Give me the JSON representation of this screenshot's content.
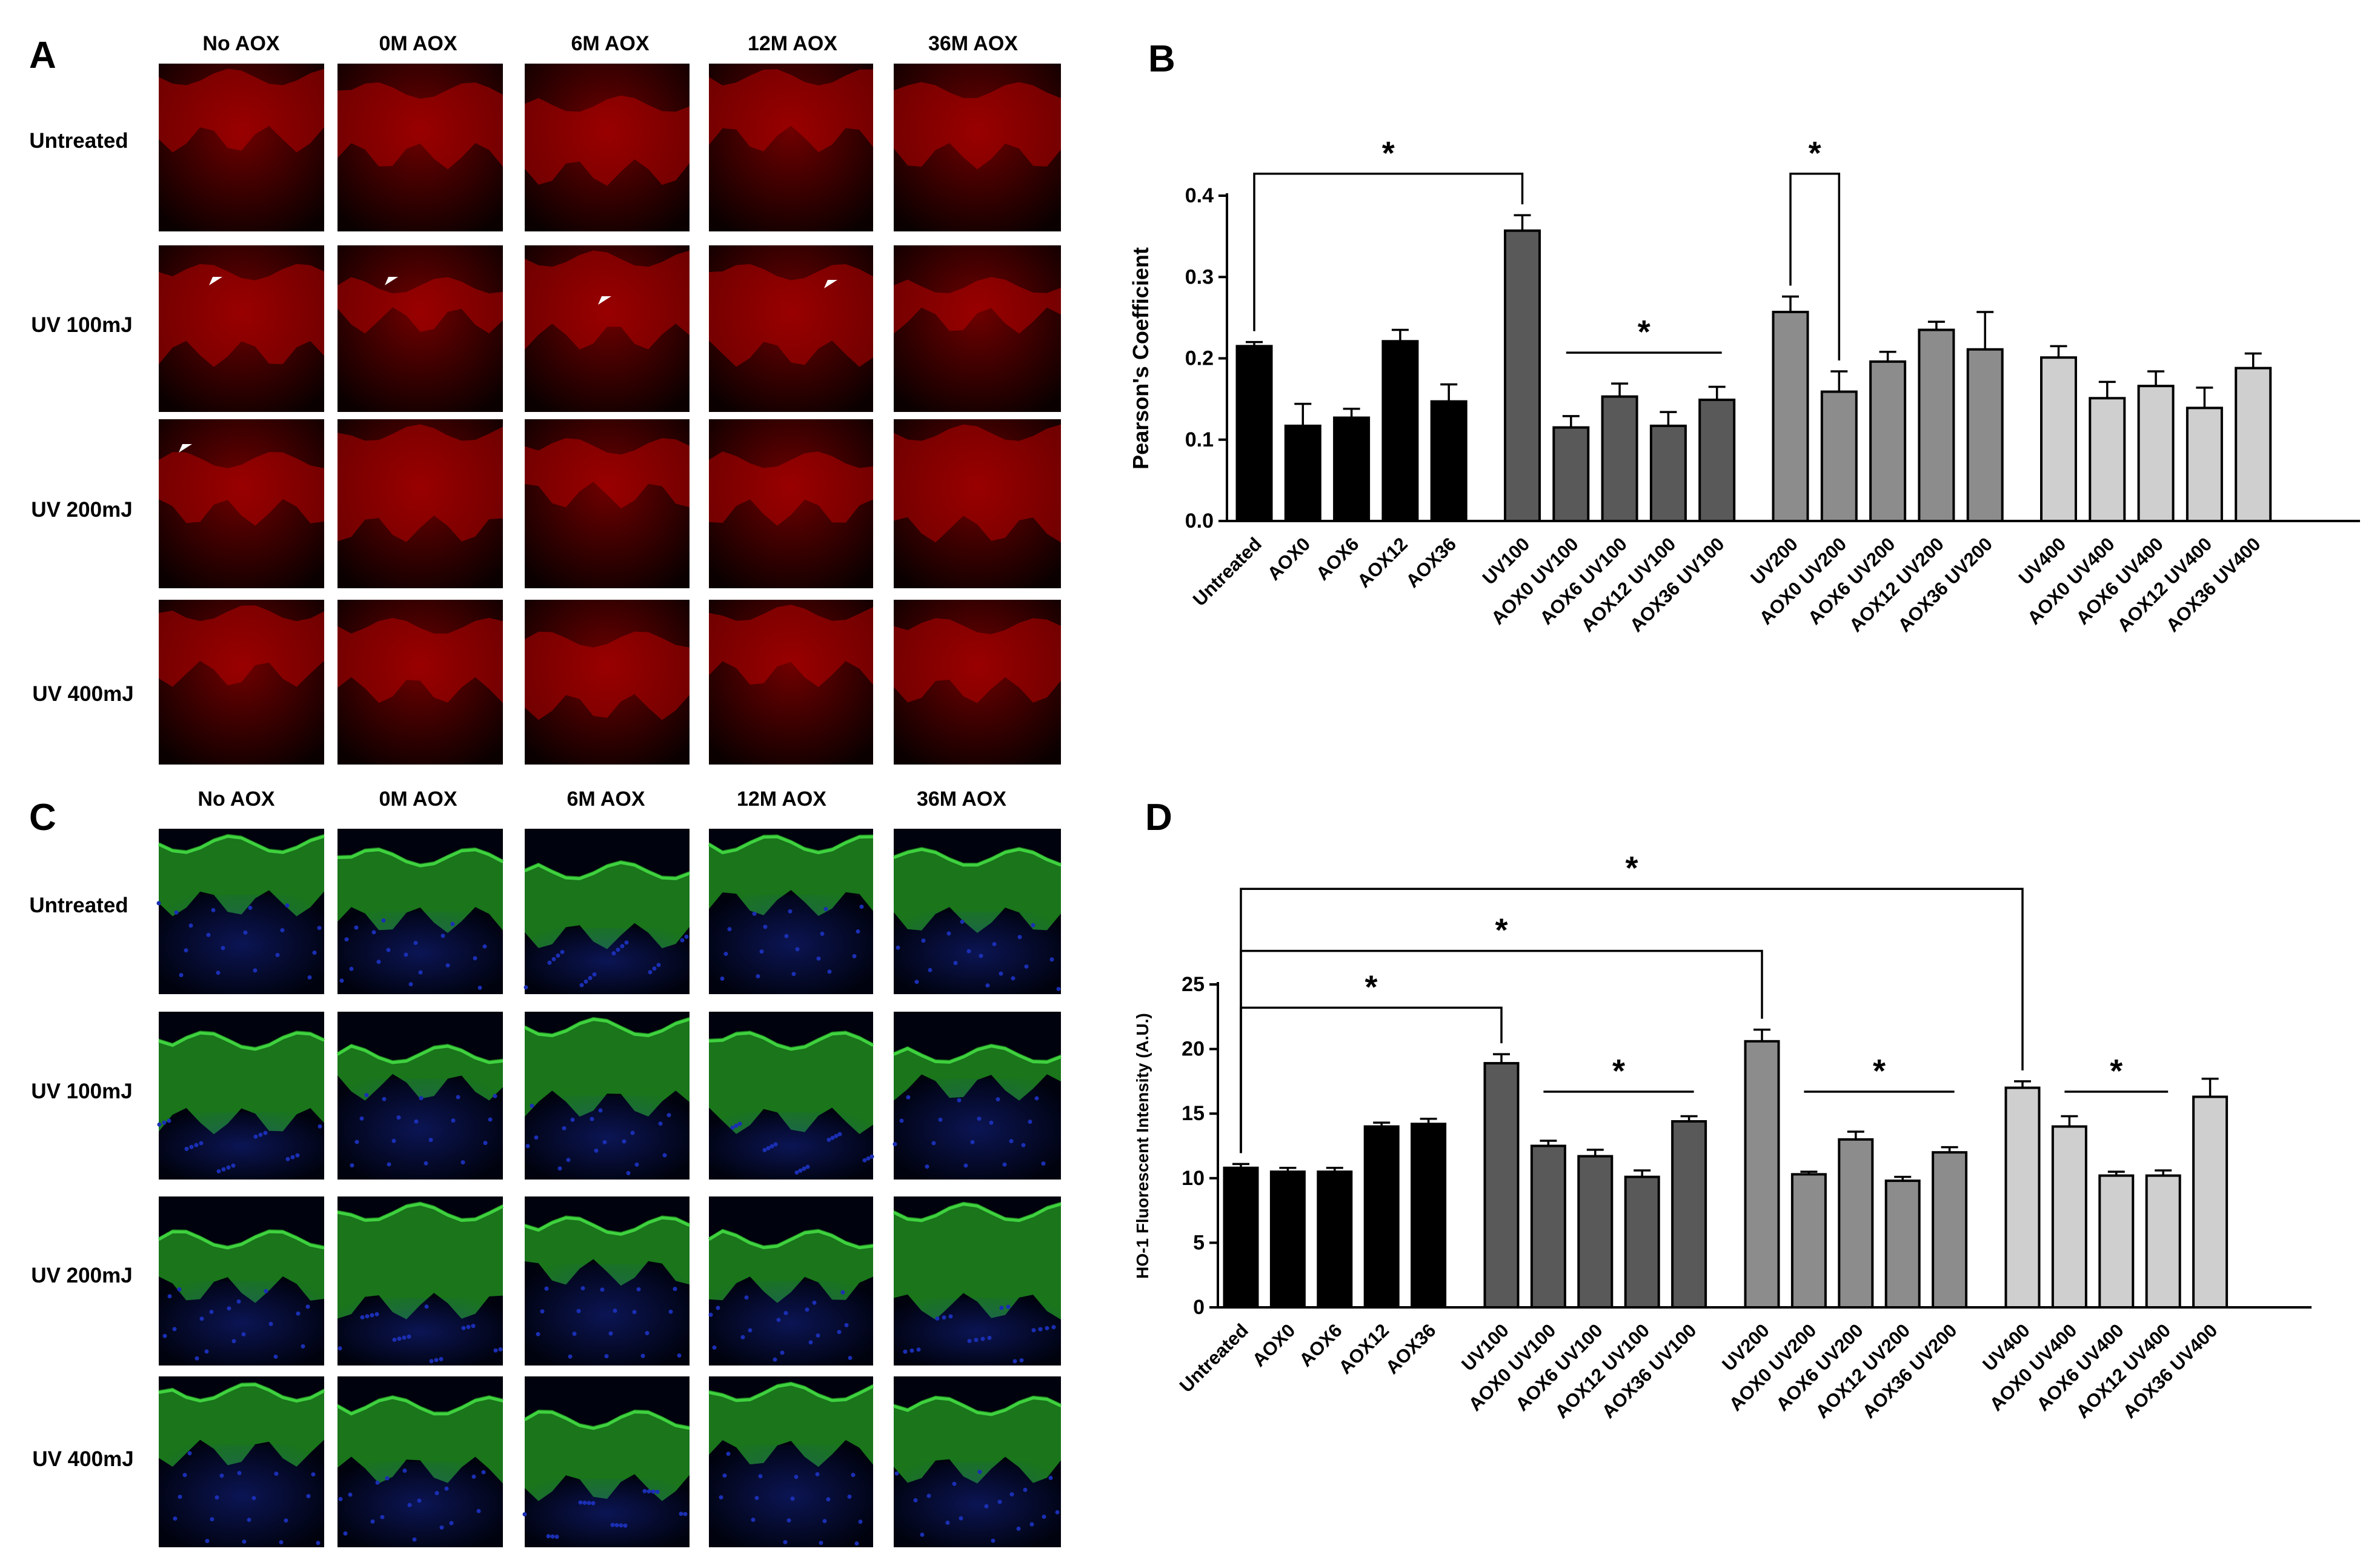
{
  "panels": {
    "A": {
      "letter": "A",
      "columns": [
        "No AOX",
        "0M AOX",
        "6M AOX",
        "12M AOX",
        "36M AOX"
      ],
      "rows": [
        "Untreated",
        "UV 100mJ",
        "UV 200mJ",
        "UV 400mJ"
      ],
      "stain_color": "#7a0000",
      "background_color": "#0b0000"
    },
    "B": {
      "letter": "B"
    },
    "C": {
      "letter": "C",
      "columns": [
        "No AOX",
        "0M AOX",
        "6M AOX",
        "12M AOX",
        "36M AOX"
      ],
      "rows": [
        "Untreated",
        "UV 100mJ",
        "UV 200mJ",
        "UV 400mJ"
      ],
      "stain_color": "#1f8a1f",
      "nuclei_color": "#1b2fb4",
      "background_color": "#00020d"
    },
    "D": {
      "letter": "D"
    }
  },
  "chart_data": [
    {
      "type": "bar",
      "panel": "B",
      "ylabel": "Pearson's Coefficient",
      "ylim": [
        0,
        0.4
      ],
      "yticks": [
        "0.0",
        "0.1",
        "0.2",
        "0.3",
        "0.4"
      ],
      "categories": [
        "Untreated",
        "AOX0",
        "AOX6",
        "AOX12",
        "AOX36",
        "UV100",
        "AOX0 UV100",
        "AOX6 UV100",
        "AOX12 UV100",
        "AOX36 UV100",
        "UV200",
        "AOX0 UV200",
        "AOX6 UV200",
        "AOX12 UV200",
        "AOX36 UV200",
        "UV400",
        "AOX0 UV400",
        "AOX6 UV400",
        "AOX12 UV400",
        "AOX36 UV400"
      ],
      "groups": [
        0,
        0,
        0,
        0,
        0,
        1,
        1,
        1,
        1,
        1,
        2,
        2,
        2,
        2,
        2,
        3,
        3,
        3,
        3,
        3
      ],
      "group_colors": [
        "#000000",
        "#595959",
        "#8c8c8c",
        "#cfcfcf"
      ],
      "values": [
        0.215,
        0.117,
        0.127,
        0.221,
        0.147,
        0.357,
        0.115,
        0.153,
        0.117,
        0.149,
        0.257,
        0.159,
        0.196,
        0.235,
        0.211,
        0.201,
        0.151,
        0.166,
        0.139,
        0.188
      ],
      "errors": [
        0.005,
        0.027,
        0.011,
        0.014,
        0.021,
        0.019,
        0.014,
        0.016,
        0.017,
        0.016,
        0.019,
        0.025,
        0.012,
        0.01,
        0.046,
        0.014,
        0.02,
        0.018,
        0.025,
        0.018
      ],
      "significance": [
        {
          "type": "bracket",
          "from": 0,
          "to": 5,
          "level": 0.427,
          "label": "*"
        },
        {
          "type": "bracket",
          "from": 10,
          "to": 11,
          "level": 0.427,
          "label": "*"
        },
        {
          "type": "line",
          "from": 6,
          "to": 9,
          "level": 0.207,
          "label": "*"
        }
      ]
    },
    {
      "type": "bar",
      "panel": "D",
      "ylabel": "HO-1 Fluorescent Intensity (A.U.)",
      "ylim": [
        0,
        25
      ],
      "yticks": [
        "0",
        "5",
        "10",
        "15",
        "20",
        "25"
      ],
      "categories": [
        "Untreated",
        "AOX0",
        "AOX6",
        "AOX12",
        "AOX36",
        "UV100",
        "AOX0 UV100",
        "AOX6 UV100",
        "AOX12 UV100",
        "AOX36 UV100",
        "UV200",
        "AOX0 UV200",
        "AOX6 UV200",
        "AOX12 UV200",
        "AOX36 UV200",
        "UV400",
        "AOX0 UV400",
        "AOX6 UV400",
        "AOX12 UV400",
        "AOX36 UV400"
      ],
      "groups": [
        0,
        0,
        0,
        0,
        0,
        1,
        1,
        1,
        1,
        1,
        2,
        2,
        2,
        2,
        2,
        3,
        3,
        3,
        3,
        3
      ],
      "group_colors": [
        "#000000",
        "#595959",
        "#8c8c8c",
        "#cfcfcf"
      ],
      "values": [
        10.8,
        10.5,
        10.5,
        14.0,
        14.2,
        18.9,
        12.5,
        11.7,
        10.1,
        14.4,
        20.6,
        10.3,
        13.0,
        9.8,
        12.0,
        17.0,
        14.0,
        10.2,
        10.2,
        16.3
      ],
      "errors": [
        0.3,
        0.3,
        0.3,
        0.3,
        0.4,
        0.7,
        0.4,
        0.5,
        0.5,
        0.4,
        0.9,
        0.2,
        0.6,
        0.3,
        0.4,
        0.5,
        0.8,
        0.3,
        0.4,
        1.4
      ],
      "significance": [
        {
          "type": "bracket",
          "from": 0,
          "to": 5,
          "level": 23.2,
          "label": "*"
        },
        {
          "type": "bracket",
          "from": 0,
          "to": 10,
          "level": 27.6,
          "label": "*"
        },
        {
          "type": "bracket",
          "from": 0,
          "to": 15,
          "level": 32.4,
          "label": "*"
        },
        {
          "type": "line",
          "from": 6,
          "to": 9,
          "level": 16.7,
          "label": "*"
        },
        {
          "type": "line",
          "from": 11,
          "to": 14,
          "level": 16.7,
          "label": "*"
        },
        {
          "type": "line",
          "from": 16,
          "to": 18,
          "level": 16.7,
          "label": "*"
        }
      ]
    }
  ]
}
